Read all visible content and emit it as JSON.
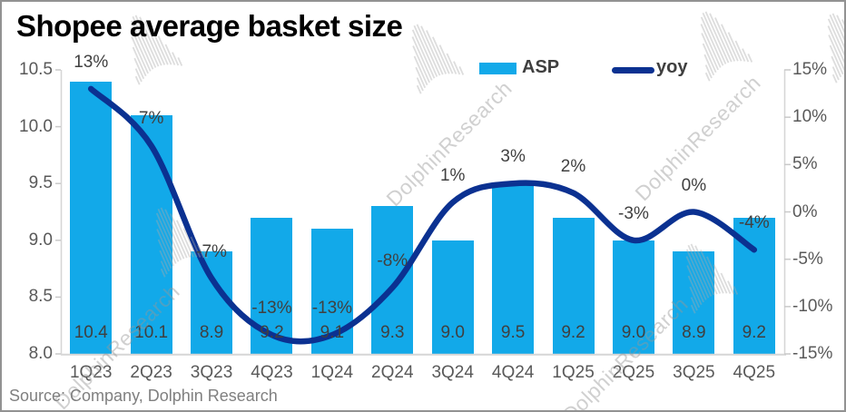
{
  "title": "Shopee average basket size",
  "source_note": "Source: Company, Dolphin Research",
  "watermark_text": "DolphinResearch",
  "legend": {
    "asp_label": "ASP",
    "yoy_label": "yoy"
  },
  "colors": {
    "bar": "#12a9e9",
    "line": "#0b3191",
    "axis_line": "#d6d6d6",
    "axis_text": "#595959",
    "data_label_text": "#3f3f3f",
    "source_text": "#7f7f7f",
    "title_text": "#000000",
    "watermark": "#d0d0d0"
  },
  "chart_data": {
    "type": "bar+line combo",
    "title": "Shopee average basket size",
    "categories": [
      "1Q23",
      "2Q23",
      "3Q23",
      "4Q23",
      "1Q24",
      "2Q24",
      "3Q24",
      "4Q24",
      "1Q25",
      "2Q25",
      "3Q25",
      "4Q25"
    ],
    "series": [
      {
        "name": "ASP",
        "type": "bar",
        "axis": "left",
        "values": [
          10.4,
          10.1,
          8.9,
          9.2,
          9.1,
          9.3,
          9.0,
          9.5,
          9.2,
          9.0,
          8.9,
          9.2
        ],
        "data_labels": [
          "10.4",
          "10.1",
          "8.9",
          "9.2",
          "9.1",
          "9.3",
          "9.0",
          "9.5",
          "9.2",
          "9.0",
          "8.9",
          "9.2"
        ]
      },
      {
        "name": "yoy",
        "type": "line",
        "axis": "right",
        "values_percent": [
          13,
          7,
          -7,
          -13,
          -13,
          -8,
          1,
          3,
          2,
          -3,
          0,
          -4
        ],
        "data_labels": [
          "13%",
          "7%",
          "-7%",
          "-13%",
          "-13%",
          "-8%",
          "1%",
          "3%",
          "2%",
          "-3%",
          "0%",
          "-4%"
        ]
      }
    ],
    "left_axis": {
      "min": 8.0,
      "max": 10.5,
      "tick_step": 0.5,
      "ticks": [
        "10.5",
        "10.0",
        "9.5",
        "9.0",
        "8.5",
        "8.0"
      ],
      "tick_values": [
        10.5,
        10.0,
        9.5,
        9.0,
        8.5,
        8.0
      ]
    },
    "right_axis": {
      "min": -15,
      "max": 15,
      "tick_step": 5,
      "ticks": [
        "15%",
        "10%",
        "5%",
        "0%",
        "-5%",
        "-10%",
        "-15%"
      ],
      "tick_values": [
        15,
        10,
        5,
        0,
        -5,
        -10,
        -15
      ]
    },
    "grid": false,
    "legend_position": "top"
  }
}
